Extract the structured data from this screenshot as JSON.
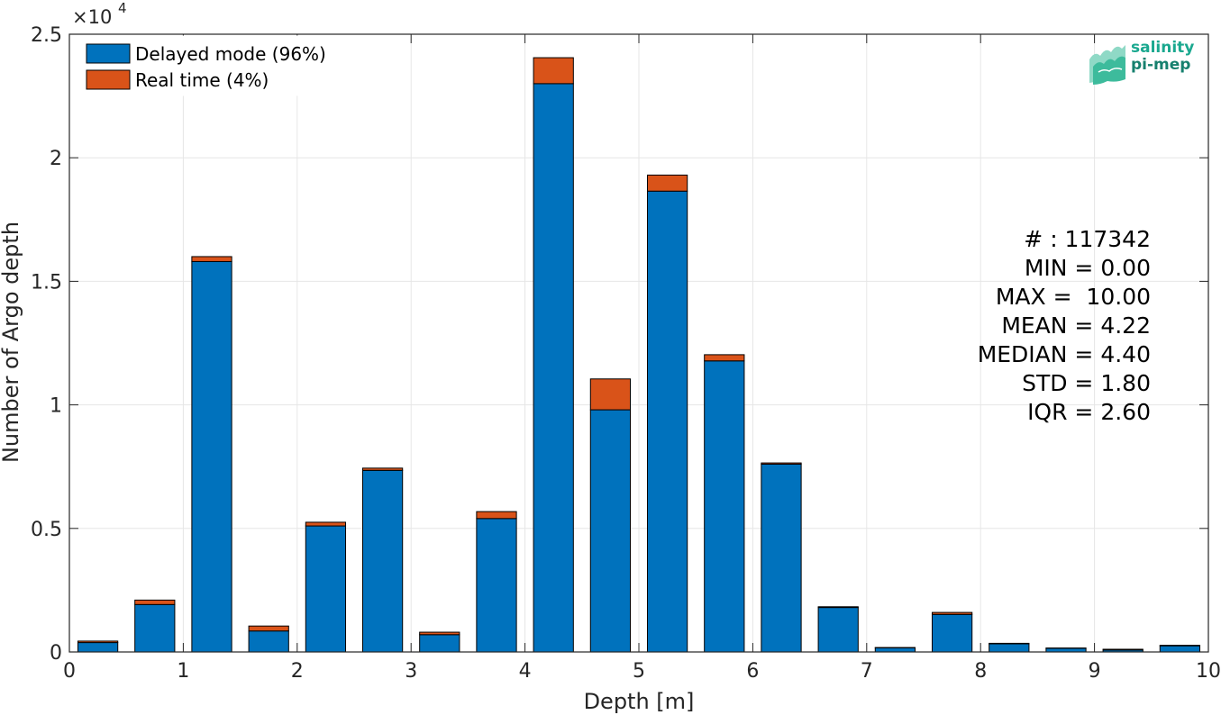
{
  "chart_data": {
    "type": "bar",
    "stacked": true,
    "xlabel": "Depth [m]",
    "ylabel": "Number of Argo depth",
    "y_exponent_label": "×10",
    "y_exponent_power": "4",
    "xlim": [
      0,
      10
    ],
    "ylim": [
      0,
      25000
    ],
    "x_ticks": [
      0,
      1,
      2,
      3,
      4,
      5,
      6,
      7,
      8,
      9,
      10
    ],
    "y_ticks": [
      0,
      5000,
      10000,
      15000,
      20000,
      25000
    ],
    "y_tick_labels": [
      "0",
      "0.5",
      "1",
      "1.5",
      "2",
      "2.5"
    ],
    "grid": true,
    "legend_position": "top-left",
    "bin_width": 0.5,
    "bar_width": 0.35,
    "x": [
      0.25,
      0.75,
      1.25,
      1.75,
      2.25,
      2.75,
      3.25,
      3.75,
      4.25,
      4.75,
      5.25,
      5.75,
      6.25,
      6.75,
      7.25,
      7.75,
      8.25,
      8.75,
      9.25,
      9.75
    ],
    "series": [
      {
        "name": "Delayed mode (96%)",
        "color": "#0072BD",
        "values": [
          380,
          1920,
          15800,
          850,
          5100,
          7350,
          700,
          5400,
          23000,
          9800,
          18650,
          11780,
          7600,
          1800,
          170,
          1520,
          330,
          150,
          80,
          250
        ]
      },
      {
        "name": "Real time (4%)",
        "color": "#D95319",
        "values": [
          60,
          180,
          200,
          200,
          150,
          90,
          100,
          280,
          1050,
          1250,
          650,
          250,
          50,
          30,
          10,
          80,
          20,
          10,
          30,
          20
        ]
      }
    ]
  },
  "stats": {
    "count": "# : 117342",
    "min": "MIN = 0.00",
    "max": "MAX =  10.00",
    "mean": "MEAN = 4.22",
    "median": "MEDIAN = 4.40",
    "std": "STD = 1.80",
    "iqr": "IQR = 2.60"
  },
  "logo": {
    "line1": "salinity",
    "line2": "pi-mep"
  }
}
